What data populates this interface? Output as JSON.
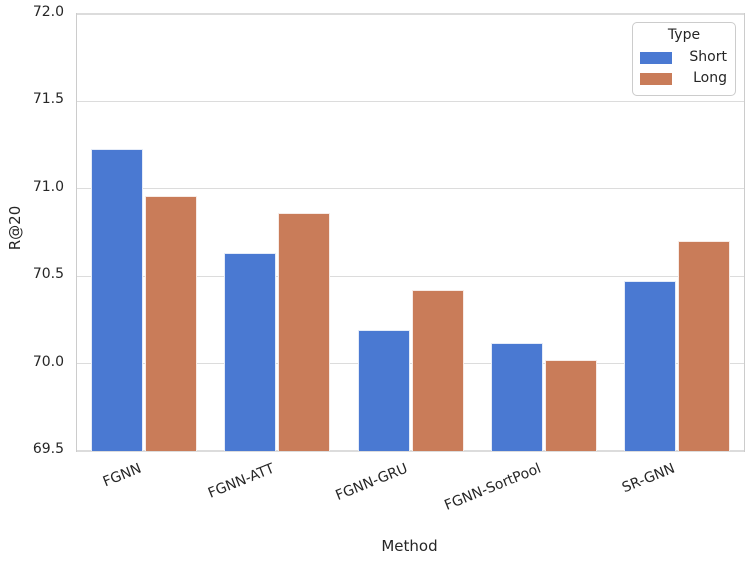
{
  "figure": {
    "background": "#ffffff",
    "text_color": "#262626",
    "grid_color": "#dcdcdc",
    "spine_color": "#cccccc"
  },
  "chart_data": {
    "type": "bar",
    "title": "",
    "xlabel": "Method",
    "ylabel": "R@20",
    "categories": [
      "FGNN",
      "FGNN-ATT",
      "FGNN-GRU",
      "FGNN-SortPool",
      "SR-GNN"
    ],
    "series": [
      {
        "name": "Short",
        "color": "#4A79D2",
        "values": [
          71.23,
          70.63,
          70.19,
          70.12,
          70.47
        ]
      },
      {
        "name": "Long",
        "color": "#C97C59",
        "values": [
          70.96,
          70.86,
          70.42,
          70.02,
          70.7
        ]
      }
    ],
    "ylim": [
      69.5,
      72.0
    ],
    "yticks": [
      69.5,
      70.0,
      70.5,
      71.0,
      71.5,
      72.0
    ],
    "ytick_labels": [
      "69.5",
      "70.0",
      "70.5",
      "71.0",
      "71.5",
      "72.0"
    ],
    "grid": "horizontal",
    "legend": {
      "title": "Type",
      "position": "upper right",
      "entries": [
        "Short",
        "Long"
      ]
    }
  }
}
